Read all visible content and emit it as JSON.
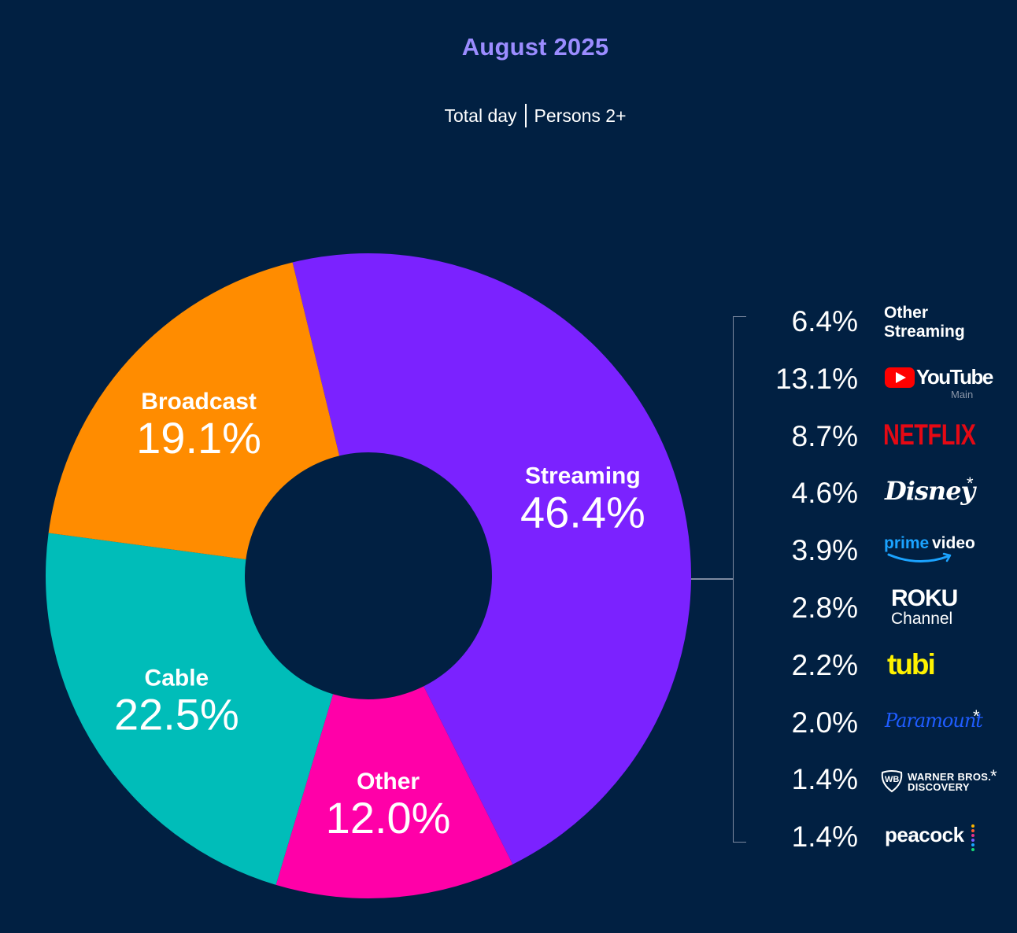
{
  "title": "August 2025",
  "subtitle_left": "Total day",
  "subtitle_right": "Persons 2+",
  "colors": {
    "background": "#012042",
    "title": "#9b8cff",
    "streaming": "#7b22ff",
    "other": "#ff00a8",
    "cable": "#00bdb9",
    "broadcast": "#ff8c00",
    "netflix": "#e50914",
    "tubi": "#fff200",
    "paramount": "#1f5cff",
    "prime": "#1ba3ff",
    "youtube_red": "#ff0000"
  },
  "chart_data": {
    "type": "pie",
    "title": "August 2025",
    "subtitle": "Total day | Persons 2+",
    "donut": true,
    "slices": [
      {
        "label": "Streaming",
        "value": 46.4,
        "display": "46.4%",
        "color": "#7b22ff"
      },
      {
        "label": "Other",
        "value": 12.0,
        "display": "12.0%",
        "color": "#ff00a8"
      },
      {
        "label": "Cable",
        "value": 22.5,
        "display": "22.5%",
        "color": "#00bdb9"
      },
      {
        "label": "Broadcast",
        "value": 19.1,
        "display": "19.1%",
        "color": "#ff8c00"
      }
    ],
    "streaming_breakdown": [
      {
        "label": "Other Streaming",
        "value": 6.4,
        "display": "6.4%"
      },
      {
        "label": "YouTube Main",
        "value": 13.1,
        "display": "13.1%"
      },
      {
        "label": "Netflix",
        "value": 8.7,
        "display": "8.7%"
      },
      {
        "label": "Disney*",
        "value": 4.6,
        "display": "4.6%"
      },
      {
        "label": "Prime Video",
        "value": 3.9,
        "display": "3.9%"
      },
      {
        "label": "Roku Channel",
        "value": 2.8,
        "display": "2.8%"
      },
      {
        "label": "Tubi",
        "value": 2.2,
        "display": "2.2%"
      },
      {
        "label": "Paramount*",
        "value": 2.0,
        "display": "2.0%"
      },
      {
        "label": "Warner Bros. Discovery*",
        "value": 1.4,
        "display": "1.4%"
      },
      {
        "label": "Peacock",
        "value": 1.4,
        "display": "1.4%"
      }
    ]
  },
  "logos": {
    "other_streaming_line1": "Other",
    "other_streaming_line2": "Streaming",
    "youtube": "YouTube",
    "youtube_sub": "Main",
    "netflix": "NETFLIX",
    "disney": "Disney",
    "prime_word1": "prime",
    "prime_word2": "video",
    "roku_line1": "ROKU",
    "roku_line2": "Channel",
    "tubi": "tubi",
    "paramount": "Paramount",
    "wbd_line1": "WARNER BROS.",
    "wbd_line2": "DISCOVERY",
    "wbd_mark": "WB",
    "peacock": "peacock",
    "asterisk": "*"
  }
}
